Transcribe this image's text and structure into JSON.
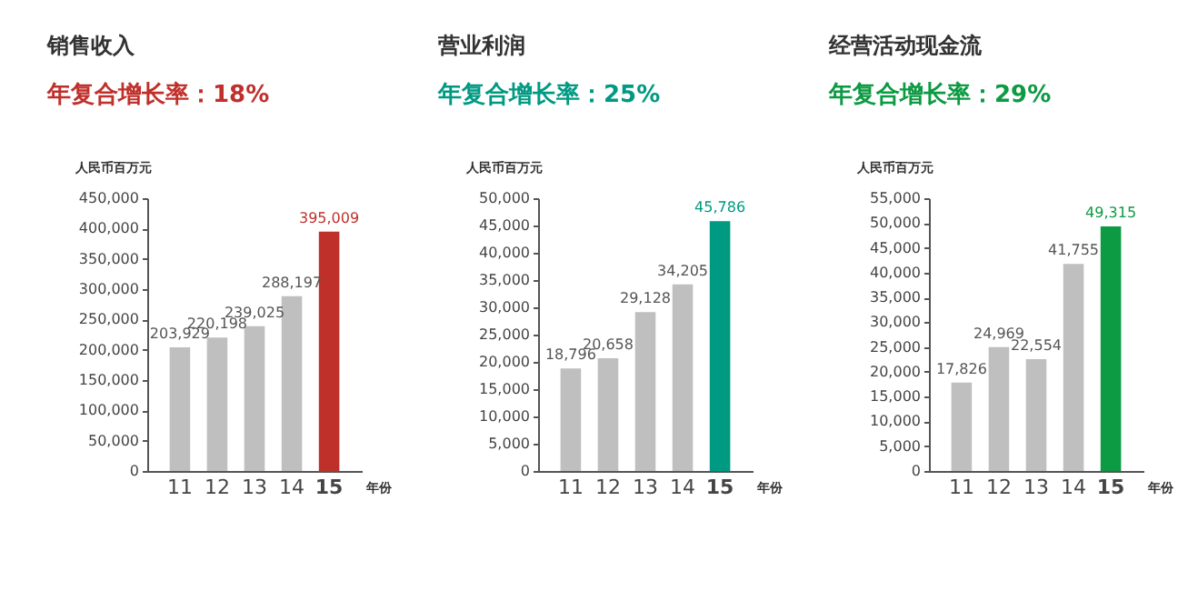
{
  "chart_data": [
    {
      "type": "bar",
      "title": "销售收入",
      "subtitle": "年复合增长率：18%",
      "ylabel": "人民币百万元",
      "xlabel": "年份",
      "categories": [
        "11",
        "12",
        "13",
        "14",
        "15"
      ],
      "values": [
        203929,
        220198,
        239025,
        288197,
        395009
      ],
      "value_labels": [
        "203,929",
        "220,198",
        "239,025",
        "288,197",
        "395,009"
      ],
      "colors": [
        "#bfbfbf",
        "#bfbfbf",
        "#bfbfbf",
        "#bfbfbf",
        "#c0302b"
      ],
      "ylim": [
        0,
        450000
      ],
      "yticks": [
        {
          "value": 0,
          "label": "0"
        },
        {
          "value": 50000,
          "label": "50,000"
        },
        {
          "value": 100000,
          "label": "100,000"
        },
        {
          "value": 150000,
          "label": "150,000"
        },
        {
          "value": 200000,
          "label": "200,000"
        },
        {
          "value": 250000,
          "label": "250,000"
        },
        {
          "value": 300000,
          "label": "300,000"
        },
        {
          "value": 350000,
          "label": "350,000"
        },
        {
          "value": 400000,
          "label": "400,000"
        },
        {
          "value": 450000,
          "label": "450,000"
        }
      ],
      "grid": false
    },
    {
      "type": "bar",
      "title": "营业利润",
      "subtitle": "年复合增长率：25%",
      "ylabel": "人民币百万元",
      "xlabel": "年份",
      "categories": [
        "11",
        "12",
        "13",
        "14",
        "15"
      ],
      "values": [
        18796,
        20658,
        29128,
        34205,
        45786
      ],
      "value_labels": [
        "18,796",
        "20,658",
        "29,128",
        "34,205",
        "45,786"
      ],
      "colors": [
        "#bfbfbf",
        "#bfbfbf",
        "#bfbfbf",
        "#bfbfbf",
        "#009a82"
      ],
      "ylim": [
        0,
        50000
      ],
      "yticks": [
        {
          "value": 0,
          "label": "0"
        },
        {
          "value": 5000,
          "label": "5,000"
        },
        {
          "value": 10000,
          "label": "10,000"
        },
        {
          "value": 15000,
          "label": "15,000"
        },
        {
          "value": 20000,
          "label": "20,000"
        },
        {
          "value": 25000,
          "label": "25,000"
        },
        {
          "value": 30000,
          "label": "30,000"
        },
        {
          "value": 35000,
          "label": "35,000"
        },
        {
          "value": 40000,
          "label": "40,000"
        },
        {
          "value": 45000,
          "label": "45,000"
        },
        {
          "value": 50000,
          "label": "50,000"
        }
      ],
      "grid": false
    },
    {
      "type": "bar",
      "title": "经营活动现金流",
      "subtitle": "年复合增长率：29%",
      "ylabel": "人民币百万元",
      "xlabel": "年份",
      "categories": [
        "11",
        "12",
        "13",
        "14",
        "15"
      ],
      "values": [
        17826,
        24969,
        22554,
        41755,
        49315
      ],
      "value_labels": [
        "17,826",
        "24,969",
        "22,554",
        "41,755",
        "49,315"
      ],
      "colors": [
        "#bfbfbf",
        "#bfbfbf",
        "#bfbfbf",
        "#bfbfbf",
        "#0c9a43"
      ],
      "ylim": [
        0,
        55000
      ],
      "yticks": [
        {
          "value": 0,
          "label": "0"
        },
        {
          "value": 5000,
          "label": "5,000"
        },
        {
          "value": 10000,
          "label": "10,000"
        },
        {
          "value": 15000,
          "label": "15,000"
        },
        {
          "value": 20000,
          "label": "20,000"
        },
        {
          "value": 25000,
          "label": "25,000"
        },
        {
          "value": 30000,
          "label": "30,000"
        },
        {
          "value": 35000,
          "label": "35,000"
        },
        {
          "value": 40000,
          "label": "40,000"
        },
        {
          "value": 45000,
          "label": "45,000"
        },
        {
          "value": 50000,
          "label": "50,000"
        },
        {
          "value": 55000,
          "label": "55,000"
        }
      ],
      "grid": false
    }
  ]
}
